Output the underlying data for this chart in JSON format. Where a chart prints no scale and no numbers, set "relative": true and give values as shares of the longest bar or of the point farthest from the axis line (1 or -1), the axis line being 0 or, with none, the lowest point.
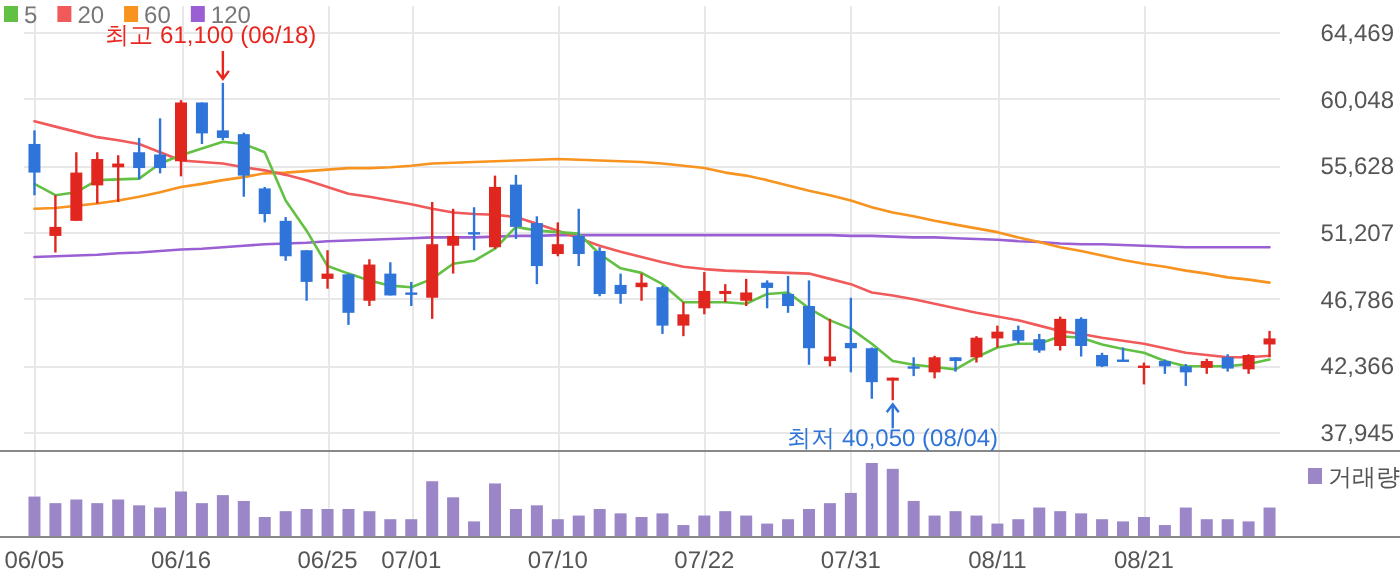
{
  "chart_data": [
    {
      "type": "candlestick",
      "categories": [
        null,
        null,
        null,
        null,
        null,
        null,
        null,
        null,
        null,
        null,
        null,
        null,
        null,
        null,
        null,
        null,
        null,
        null,
        null,
        null,
        null,
        null,
        null,
        null,
        null,
        null,
        null,
        null,
        null,
        null,
        null,
        null,
        null,
        null,
        null,
        null,
        null,
        null,
        null,
        null,
        null,
        null,
        null,
        null,
        null,
        null,
        null,
        null,
        null,
        null,
        null,
        null,
        null,
        null,
        null,
        null,
        null,
        null,
        null,
        null
      ],
      "ohlc": [
        [
          57050,
          57950,
          53650,
          55150
        ],
        [
          50950,
          53650,
          49850,
          51550
        ],
        [
          51950,
          56500,
          51950,
          55150
        ],
        [
          54300,
          56500,
          53100,
          56050
        ],
        [
          55500,
          56300,
          53200,
          55750
        ],
        [
          56500,
          57450,
          54700,
          55450
        ],
        [
          56350,
          58750,
          55100,
          55450
        ],
        [
          55900,
          59950,
          54900,
          59800
        ],
        [
          59800,
          59800,
          57050,
          57750
        ],
        [
          57950,
          61100,
          57300,
          57450
        ],
        [
          57700,
          57800,
          53550,
          54950
        ],
        [
          54100,
          54200,
          51850,
          52400
        ],
        [
          51950,
          52200,
          49300,
          49600
        ],
        [
          50000,
          50000,
          46650,
          47900
        ],
        [
          48100,
          50000,
          47450,
          48450
        ],
        [
          48400,
          48450,
          45050,
          45850
        ],
        [
          46650,
          49400,
          46300,
          49050
        ],
        [
          48450,
          49200,
          47000,
          47000
        ],
        [
          47200,
          47900,
          46300,
          47100
        ],
        [
          46850,
          53200,
          45450,
          50400
        ],
        [
          50300,
          52750,
          48450,
          50950
        ],
        [
          51200,
          52850,
          50000,
          51100
        ],
        [
          50200,
          54950,
          50100,
          54200
        ],
        [
          54350,
          55000,
          50750,
          51550
        ],
        [
          51800,
          52250,
          47750,
          48950
        ],
        [
          49750,
          51850,
          49600,
          50400
        ],
        [
          50950,
          52750,
          48950,
          49750
        ],
        [
          49950,
          50200,
          46950,
          47100
        ],
        [
          47700,
          48450,
          46450,
          47100
        ],
        [
          47550,
          48450,
          46650,
          47850
        ],
        [
          47550,
          47650,
          44450,
          45000
        ],
        [
          45000,
          46550,
          44300,
          45750
        ],
        [
          46150,
          48550,
          45750,
          47300
        ],
        [
          47100,
          47750,
          46550,
          47300
        ],
        [
          46650,
          48100,
          46300,
          47200
        ],
        [
          47850,
          48000,
          46150,
          47500
        ],
        [
          47100,
          48300,
          45850,
          46300
        ],
        [
          46300,
          48000,
          42400,
          43500
        ],
        [
          42650,
          45450,
          42300,
          42950
        ],
        [
          43850,
          46850,
          41900,
          43500
        ],
        [
          43500,
          43550,
          40150,
          41250
        ],
        [
          41350,
          41550,
          40050,
          41550
        ],
        [
          42300,
          42900,
          41650,
          42150
        ],
        [
          41900,
          43000,
          41500,
          42900
        ],
        [
          42900,
          42900,
          41950,
          42650
        ],
        [
          42900,
          44300,
          42550,
          44200
        ],
        [
          44150,
          45000,
          43550,
          44600
        ],
        [
          44700,
          45000,
          43800,
          44000
        ],
        [
          44100,
          44450,
          43200,
          43350
        ],
        [
          43650,
          45600,
          43350,
          45450
        ],
        [
          45450,
          45550,
          42950,
          43650
        ],
        [
          43050,
          43200,
          42250,
          42300
        ],
        [
          42750,
          43550,
          42600,
          42600
        ],
        [
          42250,
          42550,
          41100,
          42350
        ],
        [
          42650,
          42750,
          41800,
          42300
        ],
        [
          42300,
          42450,
          41000,
          41900
        ],
        [
          42200,
          42800,
          41800,
          42650
        ],
        [
          42900,
          43100,
          41950,
          42150
        ],
        [
          42100,
          43100,
          41800,
          43050
        ],
        [
          43750,
          44650,
          42900,
          44150
        ]
      ],
      "colors": [
        "#2f74d8",
        "#e0261f",
        "#e0261f",
        "#e0261f",
        "#e0261f",
        "#2f74d8",
        "#2f74d8",
        "#e0261f",
        "#2f74d8",
        "#2f74d8",
        "#2f74d8",
        "#2f74d8",
        "#2f74d8",
        "#2f74d8",
        "#e0261f",
        "#2f74d8",
        "#e0261f",
        "#2f74d8",
        "#2f74d8",
        "#e0261f",
        "#e0261f",
        "#2f74d8",
        "#e0261f",
        "#2f74d8",
        "#2f74d8",
        "#e0261f",
        "#2f74d8",
        "#2f74d8",
        "#2f74d8",
        "#e0261f",
        "#2f74d8",
        "#e0261f",
        "#e0261f",
        "#e0261f",
        "#e0261f",
        "#2f74d8",
        "#2f74d8",
        "#2f74d8",
        "#e0261f",
        "#2f74d8",
        "#2f74d8",
        "#e0261f",
        "#2f74d8",
        "#e0261f",
        "#2f74d8",
        "#e0261f",
        "#e0261f",
        "#2f74d8",
        "#2f74d8",
        "#e0261f",
        "#2f74d8",
        "#2f74d8",
        "#2f74d8",
        "#e0261f",
        "#2f74d8",
        "#2f74d8",
        "#e0261f",
        "#2f74d8",
        "#e0261f",
        "#e0261f"
      ],
      "series": [
        {
          "name": "5",
          "type": "line",
          "color": "#62c043",
          "values": [
            54400,
            53650,
            53850,
            54650,
            54700,
            54750,
            55750,
            56300,
            56750,
            57200,
            57050,
            56500,
            53300,
            51300,
            48950,
            48450,
            48000,
            47650,
            47550,
            48100,
            49100,
            49300,
            50100,
            51550,
            51300,
            51200,
            51100,
            49750,
            48800,
            48500,
            47750,
            46550,
            46550,
            46550,
            46450,
            47100,
            47200,
            46150,
            45350,
            44800,
            43800,
            42650,
            42400,
            42250,
            42100,
            42900,
            43550,
            43800,
            43800,
            44300,
            44200,
            43750,
            43450,
            43200,
            42650,
            42300,
            42300,
            42300,
            42450,
            42750
          ]
        },
        {
          "name": "20",
          "type": "line",
          "color": "#f05a5a",
          "values": [
            58550,
            58200,
            57850,
            57500,
            57300,
            57050,
            56500,
            55950,
            55850,
            55750,
            55500,
            55300,
            55000,
            54650,
            54200,
            53750,
            53550,
            53300,
            53050,
            52750,
            52500,
            52400,
            52350,
            52200,
            51750,
            51300,
            50800,
            50300,
            49900,
            49550,
            49200,
            48900,
            48750,
            48650,
            48600,
            48550,
            48500,
            48450,
            48100,
            47750,
            47200,
            47000,
            46750,
            46450,
            46150,
            45850,
            45600,
            45350,
            45000,
            44650,
            44450,
            44200,
            44000,
            43800,
            43500,
            43200,
            43050,
            42900,
            42900,
            43000
          ]
        },
        {
          "name": "60",
          "type": "line",
          "color": "#f7931e",
          "values": [
            52750,
            52800,
            52950,
            53100,
            53300,
            53550,
            53850,
            54200,
            54400,
            54650,
            54850,
            55100,
            55150,
            55250,
            55350,
            55450,
            55450,
            55500,
            55600,
            55750,
            55800,
            55850,
            55900,
            55950,
            56000,
            56050,
            56000,
            55950,
            55900,
            55850,
            55750,
            55600,
            55450,
            55150,
            54950,
            54650,
            54300,
            53950,
            53650,
            53300,
            52850,
            52500,
            52250,
            51950,
            51700,
            51450,
            51200,
            50850,
            50550,
            50200,
            49950,
            49650,
            49350,
            49100,
            48900,
            48650,
            48450,
            48200,
            48050,
            47850
          ]
        },
        {
          "name": "120",
          "type": "line",
          "color": "#9b5fd4",
          "values": [
            49550,
            49600,
            49650,
            49700,
            49800,
            49850,
            49950,
            50050,
            50100,
            50200,
            50300,
            50400,
            50450,
            50500,
            50600,
            50650,
            50700,
            50750,
            50800,
            50850,
            50850,
            50850,
            50900,
            50950,
            50950,
            51000,
            51000,
            51000,
            51000,
            51000,
            51000,
            51000,
            51000,
            51000,
            51000,
            51000,
            51000,
            51000,
            51000,
            50950,
            50950,
            50900,
            50850,
            50850,
            50800,
            50750,
            50700,
            50600,
            50550,
            50450,
            50400,
            50400,
            50350,
            50300,
            50250,
            50200,
            50200,
            50200,
            50200,
            50200
          ]
        }
      ],
      "ylim": [
        36750,
        66200
      ],
      "yticks": [
        {
          "value": 37945,
          "label": "37,945"
        },
        {
          "value": 42366,
          "label": "42,366"
        },
        {
          "value": 46786,
          "label": "46,786"
        },
        {
          "value": 51207,
          "label": "51,207"
        },
        {
          "value": 55628,
          "label": "55,628"
        },
        {
          "value": 60048,
          "label": "60,048"
        },
        {
          "value": 64469,
          "label": "64,469"
        }
      ],
      "tick_labels": "y",
      "grid": true,
      "legend": "top left",
      "annotations": [
        "최고 61,100 (06/18)",
        "최저 40,050 (08/04)"
      ]
    },
    {
      "type": "bar",
      "relative": true,
      "categories": [
        "06/05",
        null,
        null,
        null,
        null,
        null,
        null,
        "06/16",
        null,
        null,
        null,
        null,
        null,
        null,
        "06/25",
        null,
        null,
        null,
        "07/01",
        null,
        null,
        null,
        null,
        null,
        null,
        "07/10",
        null,
        null,
        null,
        null,
        null,
        null,
        "07/22",
        null,
        null,
        null,
        null,
        null,
        null,
        "07/31",
        null,
        null,
        null,
        null,
        null,
        null,
        "08/11",
        null,
        null,
        null,
        null,
        null,
        null,
        "08/21",
        null,
        null,
        null,
        null,
        null,
        null
      ],
      "series": [
        {
          "name": "거래량",
          "color": "#9b86c7",
          "values": [
            0.54,
            0.45,
            0.5,
            0.45,
            0.5,
            0.42,
            0.39,
            0.61,
            0.45,
            0.56,
            0.48,
            0.26,
            0.34,
            0.37,
            0.37,
            0.37,
            0.34,
            0.23,
            0.23,
            0.75,
            0.53,
            0.2,
            0.72,
            0.37,
            0.42,
            0.23,
            0.28,
            0.37,
            0.31,
            0.26,
            0.31,
            0.15,
            0.28,
            0.34,
            0.28,
            0.17,
            0.23,
            0.37,
            0.45,
            0.59,
            1,
            0.92,
            0.48,
            0.28,
            0.34,
            0.28,
            0.17,
            0.23,
            0.39,
            0.34,
            0.31,
            0.23,
            0.2,
            0.26,
            0.15,
            0.39,
            0.23,
            0.23,
            0.2,
            0.39
          ]
        }
      ],
      "grid": "x",
      "legend": "top right"
    }
  ]
}
